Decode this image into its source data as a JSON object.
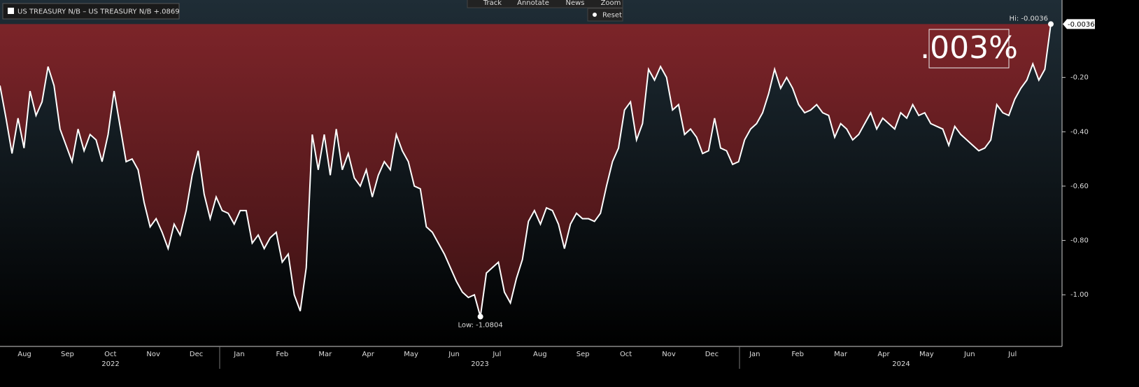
{
  "toolbar": {
    "buttons": [
      "Track",
      "Annotate",
      "News",
      "Zoom"
    ],
    "reset": "Reset"
  },
  "chart_data": {
    "type": "line",
    "callout": ".003%",
    "annotations": {
      "high": "Hi: -0.0036",
      "low": "Low: -1.0804",
      "last": "-0.0036"
    },
    "months": [
      "Aug",
      "Sep",
      "Oct",
      "Nov",
      "Dec",
      "Jan",
      "Feb",
      "Mar",
      "Apr",
      "May",
      "Jun",
      "Jul",
      "Aug",
      "Sep",
      "Oct",
      "Nov",
      "Dec",
      "Jan",
      "Feb",
      "Mar",
      "Apr",
      "May",
      "Jun",
      "Jul"
    ],
    "years": [
      "2022",
      "2023",
      "2024"
    ],
    "ylim": [
      -1.19,
      0.085
    ],
    "yticks": [
      {
        "value": -0.2,
        "label": "-0.20"
      },
      {
        "value": -0.4,
        "label": "-0.40"
      },
      {
        "value": -0.6,
        "label": "-0.60"
      },
      {
        "value": -0.8,
        "label": "-0.80"
      },
      {
        "value": -1.0,
        "label": "-1.00"
      }
    ],
    "series": [
      {
        "name": "US TREASURY N/B – US TREASURY N/B +.0869",
        "color": "#ffffff",
        "values": [
          -0.23,
          -0.35,
          -0.48,
          -0.35,
          -0.46,
          -0.25,
          -0.34,
          -0.29,
          -0.16,
          -0.23,
          -0.39,
          -0.45,
          -0.51,
          -0.39,
          -0.47,
          -0.41,
          -0.43,
          -0.51,
          -0.41,
          -0.25,
          -0.38,
          -0.51,
          -0.5,
          -0.54,
          -0.66,
          -0.75,
          -0.72,
          -0.77,
          -0.83,
          -0.74,
          -0.78,
          -0.69,
          -0.56,
          -0.47,
          -0.63,
          -0.72,
          -0.64,
          -0.69,
          -0.7,
          -0.74,
          -0.69,
          -0.69,
          -0.81,
          -0.78,
          -0.83,
          -0.79,
          -0.77,
          -0.88,
          -0.85,
          -1.0,
          -1.06,
          -0.9,
          -0.41,
          -0.54,
          -0.41,
          -0.56,
          -0.39,
          -0.54,
          -0.48,
          -0.57,
          -0.6,
          -0.54,
          -0.64,
          -0.56,
          -0.51,
          -0.54,
          -0.41,
          -0.47,
          -0.51,
          -0.6,
          -0.61,
          -0.75,
          -0.77,
          -0.81,
          -0.85,
          -0.9,
          -0.95,
          -0.99,
          -1.01,
          -1.0,
          -1.0804,
          -0.92,
          -0.9,
          -0.88,
          -0.99,
          -1.03,
          -0.94,
          -0.87,
          -0.73,
          -0.69,
          -0.74,
          -0.68,
          -0.69,
          -0.74,
          -0.83,
          -0.74,
          -0.7,
          -0.72,
          -0.72,
          -0.73,
          -0.7,
          -0.6,
          -0.51,
          -0.46,
          -0.32,
          -0.29,
          -0.43,
          -0.37,
          -0.17,
          -0.21,
          -0.16,
          -0.2,
          -0.32,
          -0.3,
          -0.41,
          -0.39,
          -0.42,
          -0.48,
          -0.47,
          -0.35,
          -0.46,
          -0.47,
          -0.52,
          -0.51,
          -0.43,
          -0.39,
          -0.37,
          -0.33,
          -0.26,
          -0.17,
          -0.24,
          -0.2,
          -0.24,
          -0.3,
          -0.33,
          -0.32,
          -0.3,
          -0.33,
          -0.34,
          -0.42,
          -0.37,
          -0.39,
          -0.43,
          -0.41,
          -0.37,
          -0.33,
          -0.39,
          -0.35,
          -0.37,
          -0.39,
          -0.33,
          -0.35,
          -0.3,
          -0.34,
          -0.33,
          -0.37,
          -0.38,
          -0.39,
          -0.45,
          -0.38,
          -0.41,
          -0.43,
          -0.45,
          -0.47,
          -0.46,
          -0.43,
          -0.3,
          -0.33,
          -0.34,
          -0.28,
          -0.24,
          -0.21,
          -0.15,
          -0.21,
          -0.17,
          -0.0036
        ]
      }
    ]
  }
}
